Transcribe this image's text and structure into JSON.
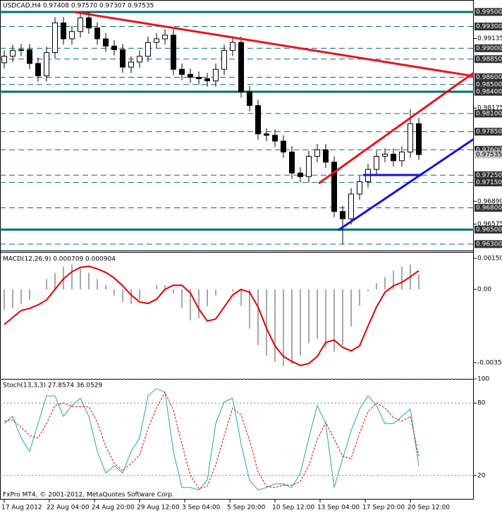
{
  "chart_data": [
    {
      "type": "candlestick",
      "title": "USDCAD,H4 0.97408 0.97570 0.97307 0.97535",
      "xlim": [
        -0.5,
        55.5
      ],
      "ylim": [
        0.96212,
        0.99665
      ],
      "xticks": [
        {
          "value": 0,
          "label": "17 Aug 2012"
        },
        {
          "value": 5.33,
          "label": "22 Aug 04:00"
        },
        {
          "value": 10.67,
          "label": "24 Aug 20:00"
        },
        {
          "value": 16,
          "label": "29 Aug 12:00"
        },
        {
          "value": 21.33,
          "label": "3 Sep 04:00"
        },
        {
          "value": 26.67,
          "label": "5 Sep 20:00"
        },
        {
          "value": 32,
          "label": "10 Sep 12:00"
        },
        {
          "value": 37.33,
          "label": "13 Sep 04:00"
        },
        {
          "value": 42.67,
          "label": "17 Sep 20:00"
        },
        {
          "value": 48,
          "label": "20 Sep 12:00"
        }
      ],
      "yticks": [
        {
          "value": 0.99135,
          "label": "0.99135"
        },
        {
          "value": 0.98175,
          "label": "0.98175"
        },
        {
          "value": 0.9689,
          "label": "0.96890"
        },
        {
          "value": 0.96575,
          "label": "0.96575"
        }
      ],
      "levels": [
        {
          "value": 0.995,
          "label": "0.99500",
          "style": "solid"
        },
        {
          "value": 0.993,
          "label": "0.99300",
          "style": "dashed"
        },
        {
          "value": 0.99,
          "label": "0.99000",
          "style": "dashed"
        },
        {
          "value": 0.9885,
          "label": "0.98850",
          "style": "dashed"
        },
        {
          "value": 0.986,
          "label": "0.98600",
          "style": "dashed"
        },
        {
          "value": 0.985,
          "label": "0.98500",
          "style": "dashed"
        },
        {
          "value": 0.984,
          "label": "0.98400",
          "style": "solid"
        },
        {
          "value": 0.981,
          "label": "0.98100",
          "style": "dashed"
        },
        {
          "value": 0.9785,
          "label": "0.97850",
          "style": "dashed"
        },
        {
          "value": 0.976,
          "label": "0.97600",
          "style": "dashed"
        },
        {
          "value": 0.9725,
          "label": "0.97250",
          "style": "dashed"
        },
        {
          "value": 0.9715,
          "label": "0.97150",
          "style": "dashed"
        },
        {
          "value": 0.968,
          "label": "0.96800",
          "style": "dashed"
        },
        {
          "value": 0.965,
          "label": "0.96500",
          "style": "solid"
        },
        {
          "value": 0.963,
          "label": "0.96300",
          "style": "dashed"
        }
      ],
      "level_color": "#007070",
      "last": {
        "value": 0.97535,
        "label": "0.97535"
      },
      "open": [
        0.988,
        0.9889,
        0.9897,
        0.9898,
        0.9879,
        0.9862,
        0.9894,
        0.9935,
        0.9913,
        0.9923,
        0.9942,
        0.9928,
        0.9913,
        0.9903,
        0.9898,
        0.9874,
        0.9881,
        0.9889,
        0.9908,
        0.9913,
        0.9918,
        0.9871,
        0.9864,
        0.986,
        0.9858,
        0.9855,
        0.9871,
        0.9897,
        0.9908,
        0.984,
        0.9821,
        0.9782,
        0.978,
        0.9772,
        0.9757,
        0.9728,
        0.9723,
        0.9751,
        0.976,
        0.9743,
        0.9675,
        0.9665,
        0.9699,
        0.9716,
        0.9733,
        0.9751,
        0.9754,
        0.9745,
        0.9757,
        0.9796
      ],
      "high": [
        0.9897,
        0.9905,
        0.9906,
        0.9906,
        0.9887,
        0.9902,
        0.9943,
        0.9943,
        0.9931,
        0.995,
        0.995,
        0.9936,
        0.9921,
        0.9911,
        0.9906,
        0.9889,
        0.9897,
        0.9916,
        0.9921,
        0.9926,
        0.9926,
        0.9879,
        0.9872,
        0.9868,
        0.9866,
        0.9879,
        0.9905,
        0.9916,
        0.9916,
        0.9848,
        0.9829,
        0.979,
        0.9788,
        0.978,
        0.9765,
        0.9736,
        0.9759,
        0.9768,
        0.9768,
        0.9751,
        0.9683,
        0.9707,
        0.9724,
        0.9741,
        0.9759,
        0.9762,
        0.9762,
        0.9765,
        0.9816,
        0.9804
      ],
      "low": [
        0.9872,
        0.9881,
        0.9889,
        0.9871,
        0.9854,
        0.9854,
        0.9886,
        0.9905,
        0.9905,
        0.9915,
        0.992,
        0.9905,
        0.9895,
        0.989,
        0.9866,
        0.9866,
        0.9873,
        0.9881,
        0.99,
        0.9905,
        0.9863,
        0.9856,
        0.9852,
        0.985,
        0.9847,
        0.9847,
        0.9863,
        0.9889,
        0.9832,
        0.9813,
        0.9774,
        0.9772,
        0.9764,
        0.9749,
        0.972,
        0.9715,
        0.9715,
        0.9743,
        0.9735,
        0.9667,
        0.963,
        0.9657,
        0.9691,
        0.9708,
        0.9725,
        0.9743,
        0.9737,
        0.9737,
        0.9749,
        0.9746
      ],
      "close": [
        0.9889,
        0.9897,
        0.9898,
        0.9879,
        0.9862,
        0.9894,
        0.9935,
        0.9913,
        0.9923,
        0.9942,
        0.9928,
        0.9913,
        0.9903,
        0.9898,
        0.9874,
        0.9881,
        0.9889,
        0.9908,
        0.9913,
        0.9918,
        0.9871,
        0.9864,
        0.986,
        0.9858,
        0.9855,
        0.9871,
        0.9897,
        0.9908,
        0.984,
        0.9821,
        0.9782,
        0.978,
        0.9772,
        0.9757,
        0.9728,
        0.9723,
        0.9751,
        0.976,
        0.9743,
        0.9675,
        0.9665,
        0.9699,
        0.9716,
        0.9733,
        0.9751,
        0.9754,
        0.9745,
        0.9757,
        0.9796,
        0.97535
      ],
      "trendlines": [
        {
          "color": "#e8141c",
          "points": [
            [
              8.25,
              0.995
            ],
            [
              55.5,
              0.98615
            ]
          ]
        },
        {
          "color": "#e8141c",
          "points": [
            [
              37.17,
              0.97137
            ],
            [
              55.5,
              0.98664
            ]
          ]
        },
        {
          "color": "#1414d8",
          "points": [
            [
              39.5,
              0.96494
            ],
            [
              55.5,
              0.97749
            ]
          ]
        },
        {
          "color": "#1414d8",
          "points": [
            [
              42.42,
              0.97253
            ],
            [
              49.33,
              0.97253
            ]
          ]
        }
      ]
    },
    {
      "type": "macd",
      "title": "MACD(12,26,9) 0.000709 0.000904",
      "ylim": [
        -0.00436,
        0.00181
      ],
      "yticks": [
        {
          "value": 0.0015,
          "label": "0.00150"
        },
        {
          "value": 0,
          "label": "0.00"
        },
        {
          "value": -0.00354,
          "label": "-0.00354"
        }
      ],
      "series": [
        {
          "kind": "bar",
          "color": "#a8a8a8",
          "values": [
            -0.001,
            -0.0009,
            -0.0007,
            -0.0005,
            0,
            0.0005,
            0.0008,
            0.0011,
            0.0012,
            0.001,
            0.0008,
            0.0005,
            0.0002,
            -0.0003,
            -0.0006,
            -0.0007,
            -0.0005,
            0,
            0.0002,
            0.0002,
            -0.0002,
            -0.0009,
            -0.0015,
            -0.0014,
            -0.0008,
            -0.0003,
            0,
            -0.0001,
            -0.0008,
            -0.0019,
            -0.0027,
            -0.0032,
            -0.0035,
            -0.0037,
            -0.0036,
            -0.0032,
            -0.0026,
            -0.0024,
            -0.0028,
            -0.003,
            -0.0027,
            -0.0018,
            -0.0008,
            -0.0001,
            0.0003,
            0.0006,
            0.0009,
            0.0011,
            0.0012,
            0.000709
          ]
        },
        {
          "kind": "line",
          "color": "#e00000",
          "values": [
            -0.0017,
            -0.00136,
            -0.00102,
            -0.00092,
            -0.00075,
            -0.00051,
            0,
            0.00051,
            0.00085,
            0.00106,
            0.00112,
            0.00099,
            0.00082,
            0.00055,
            0.00017,
            -0.00027,
            -0.00061,
            -0.00068,
            -0.00048,
            0,
            0.0002,
            0.0002,
            -0.00017,
            -0.00095,
            -0.00153,
            -0.00143,
            -0.00085,
            -0.00027,
            0,
            -0.00014,
            -0.00085,
            -0.00188,
            -0.00273,
            -0.00324,
            -0.00348,
            -0.00368,
            -0.00358,
            -0.00324,
            -0.00256,
            -0.00245,
            -0.0028,
            -0.00297,
            -0.00273,
            -0.00177,
            -0.00085,
            -0.00014,
            0.00017,
            0.00034,
            0.00061,
            0.000904
          ]
        }
      ]
    },
    {
      "type": "stochastic",
      "title": "Stoch(13,3,3) 27.8574 36.0529",
      "annotation": "FxPro MT4, © 2001-2012, MetaQuotes Software Corp.",
      "ylim": [
        0,
        100
      ],
      "yticks": [
        100,
        80,
        20
      ],
      "grid": true,
      "series": [
        {
          "color": "#20a8a8",
          "style": "solid",
          "values": [
            63,
            69,
            51,
            40,
            63,
            86,
            86,
            69,
            78,
            84,
            69,
            40,
            22,
            28,
            22,
            40,
            51,
            86,
            92,
            89,
            40,
            10,
            10,
            8,
            16,
            63,
            81,
            84,
            46,
            16,
            8,
            10,
            13,
            13,
            10,
            22,
            51,
            78,
            63,
            10,
            34,
            57,
            75,
            86,
            78,
            63,
            63,
            69,
            75,
            27.8574
          ]
        },
        {
          "color": "#e00000",
          "style": "dashed",
          "values": [
            65,
            66,
            60,
            53,
            51,
            63,
            78,
            80,
            77,
            77,
            77,
            64,
            44,
            30,
            24,
            30,
            37,
            59,
            76,
            89,
            74,
            46,
            20,
            9,
            11,
            29,
            53,
            76,
            70,
            49,
            23,
            11,
            10,
            12,
            12,
            15,
            28,
            50,
            64,
            50,
            36,
            34,
            55,
            73,
            80,
            76,
            68,
            65,
            69,
            36.0529
          ]
        }
      ]
    }
  ]
}
